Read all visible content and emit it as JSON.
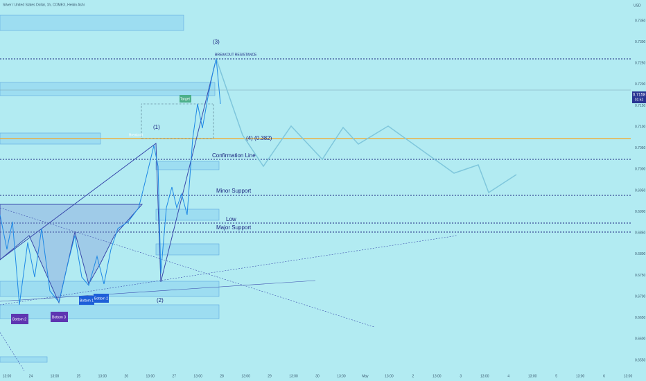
{
  "header": {
    "title": "Silver / United States Dollar, 1h, COMEX, Heikin Ashi"
  },
  "currency": "USD",
  "price_label": {
    "price": "0.7158",
    "countdown": "01:52"
  },
  "y_axis": {
    "labels": [
      "0.7350",
      "0.7300",
      "0.7250",
      "0.7200",
      "0.7150",
      "0.7100",
      "0.7050",
      "0.7000",
      "0.6950",
      "0.6900",
      "0.6850",
      "0.6800",
      "0.6750",
      "0.6700",
      "0.6650",
      "0.6600",
      "0.6550"
    ]
  },
  "x_axis": {
    "labels": [
      "13:00",
      "24",
      "13:00",
      "25",
      "13:00",
      "26",
      "13:00",
      "27",
      "13:00",
      "28",
      "13:00",
      "29",
      "13:00",
      "30",
      "13:00",
      "May",
      "13:00",
      "2",
      "13:00",
      "3",
      "13:00",
      "4",
      "13:00",
      "5",
      "13:00",
      "6",
      "13:00"
    ]
  },
  "annotations": {
    "wave3": "(3)",
    "breakout_resistance": "BREAKOUT RESISTANCE",
    "target": "Target",
    "wave1": "(1)",
    "breakout": "Breakout",
    "wave4": "(4) (0.382)",
    "confirmation": "Confirmation Line",
    "minor_support": "Minor Support",
    "low": "Low",
    "major_support": "Major Support",
    "wave2": "(2)",
    "bottom1": "Bottom 1",
    "bottom2b": "Bottom 2",
    "bottom2": "Bottom 2",
    "bottom3": "Bottom 3"
  }
}
